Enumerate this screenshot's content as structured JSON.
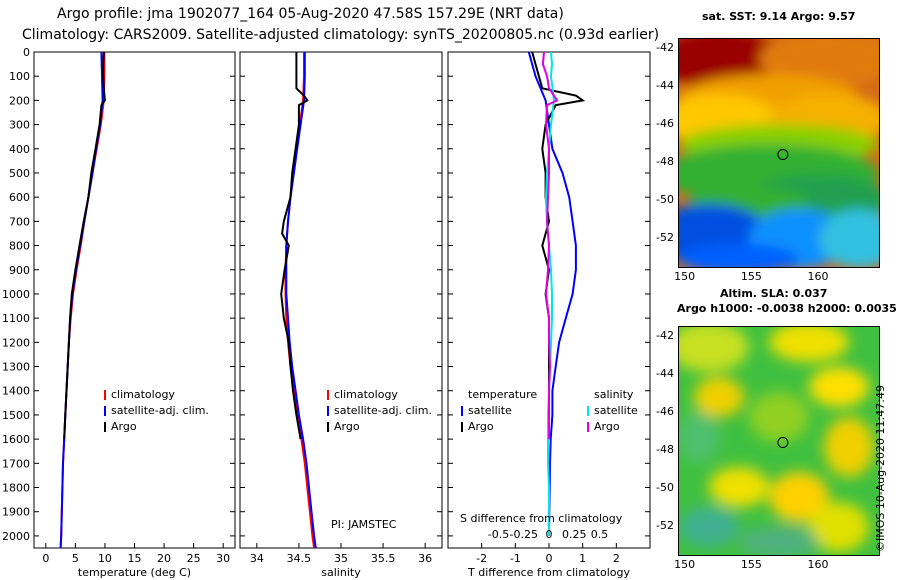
{
  "header": {
    "line1": "Argo profile: jma 1902077_164 05-Aug-2020 47.58S 157.29E (NRT data)",
    "line2": "Climatology: CARS2009. Satellite-adjusted climatology: synTS_20200805.nc (0.93d earlier)"
  },
  "colors": {
    "climatology": "#ff0000",
    "satellite": "#0000ff",
    "argo": "#000000",
    "t_satellite": "#0000ff",
    "s_satellite": "#00e5e5",
    "s_argo": "#e000e0"
  },
  "depth_ticks": [
    "0",
    "100",
    "200",
    "300",
    "400",
    "500",
    "600",
    "700",
    "800",
    "900",
    "1000",
    "1100",
    "1200",
    "1300",
    "1400",
    "1500",
    "1600",
    "1700",
    "1800",
    "1900",
    "2000"
  ],
  "chart_data": [
    {
      "type": "line",
      "xlabel": "temperature (deg C)",
      "xlim": [
        -2,
        32
      ],
      "xticks": [
        "0",
        "5",
        "10",
        "15",
        "20",
        "25",
        "30"
      ],
      "ylim": [
        2050,
        0
      ],
      "legend": [
        "climatology",
        "satellite-adj. clim.",
        "Argo"
      ],
      "series": [
        {
          "name": "climatology",
          "depth": [
            0,
            100,
            200,
            300,
            400,
            500,
            600,
            700,
            800,
            900,
            1000,
            1100,
            1200,
            1300,
            1400,
            1500,
            1600,
            1700,
            1800,
            1900,
            2000,
            2050
          ],
          "values": [
            9.9,
            9.9,
            9.8,
            9.3,
            8.6,
            7.9,
            7.2,
            6.5,
            5.9,
            5.2,
            4.6,
            4.2,
            3.9,
            3.7,
            3.5,
            3.3,
            3.1,
            2.9,
            2.8,
            2.7,
            2.6,
            2.5
          ]
        },
        {
          "name": "satellite-adj. clim.",
          "depth": [
            0,
            100,
            200,
            300,
            400,
            500,
            600,
            700,
            800,
            900,
            1000,
            1100,
            1200,
            1300,
            1400,
            1500,
            1600,
            1700,
            1800,
            1900,
            2000,
            2050
          ],
          "values": [
            9.4,
            9.5,
            9.6,
            9.2,
            8.5,
            7.9,
            7.2,
            6.5,
            5.8,
            5.1,
            4.5,
            4.1,
            3.9,
            3.7,
            3.5,
            3.3,
            3.1,
            2.9,
            2.8,
            2.7,
            2.6,
            2.5
          ]
        },
        {
          "name": "Argo",
          "depth": [
            0,
            50,
            100,
            150,
            200,
            220,
            300,
            400,
            500,
            600,
            700,
            800,
            900,
            1000,
            1100,
            1200,
            1300,
            1400,
            1500,
            1600
          ],
          "values": [
            9.8,
            9.7,
            9.7,
            9.8,
            10.0,
            9.4,
            9.1,
            8.4,
            7.7,
            7.2,
            6.4,
            5.7,
            5.0,
            4.4,
            4.1,
            3.9,
            3.7,
            3.5,
            3.3,
            3.1
          ]
        }
      ]
    },
    {
      "type": "line",
      "xlabel": "salinity",
      "xlim": [
        33.8,
        36.2
      ],
      "xticks": [
        "34",
        "34.5",
        "35",
        "35.5",
        "36"
      ],
      "ylim": [
        2050,
        0
      ],
      "legend": [
        "climatology",
        "satellite-adj. clim.",
        "Argo"
      ],
      "annotation": "PI: JAMSTEC",
      "series": [
        {
          "name": "climatology",
          "depth": [
            0,
            100,
            200,
            300,
            400,
            500,
            600,
            700,
            800,
            900,
            1000,
            1100,
            1200,
            1300,
            1400,
            1500,
            1600,
            1700,
            1800,
            1900,
            2000,
            2050
          ],
          "values": [
            34.56,
            34.56,
            34.55,
            34.51,
            34.47,
            34.43,
            34.4,
            34.37,
            34.35,
            34.34,
            34.34,
            34.35,
            34.37,
            34.4,
            34.44,
            34.48,
            34.53,
            34.57,
            34.6,
            34.63,
            34.66,
            34.68
          ]
        },
        {
          "name": "satellite-adj. clim.",
          "depth": [
            0,
            100,
            200,
            300,
            400,
            500,
            600,
            700,
            800,
            900,
            1000,
            1100,
            1200,
            1300,
            1400,
            1500,
            1600,
            1700,
            1800,
            1900,
            2000,
            2050
          ],
          "values": [
            34.57,
            34.57,
            34.56,
            34.52,
            34.48,
            34.44,
            34.4,
            34.37,
            34.35,
            34.35,
            34.35,
            34.37,
            34.39,
            34.42,
            34.46,
            34.5,
            34.55,
            34.59,
            34.62,
            34.65,
            34.68,
            34.7
          ]
        },
        {
          "name": "Argo",
          "depth": [
            0,
            50,
            100,
            150,
            180,
            200,
            220,
            300,
            400,
            500,
            600,
            700,
            750,
            800,
            900,
            1000,
            1100,
            1200,
            1300,
            1400,
            1500,
            1600
          ],
          "values": [
            34.47,
            34.47,
            34.47,
            34.47,
            34.56,
            34.6,
            34.5,
            34.5,
            34.46,
            34.42,
            34.4,
            34.32,
            34.3,
            34.38,
            34.33,
            34.29,
            34.32,
            34.38,
            34.4,
            34.43,
            34.47,
            34.52
          ]
        }
      ]
    },
    {
      "type": "line",
      "xlabel": "T difference from climatology",
      "xlim": [
        -3,
        3
      ],
      "xticks": [
        "-2",
        "-1",
        "0",
        "1",
        "2"
      ],
      "secondary_xlabel": "S difference from climatology",
      "secondary_xticks": [
        "-0.5",
        "-0.25",
        "0",
        "0.25",
        "0.5"
      ],
      "ylim": [
        2050,
        0
      ],
      "legend_heading_left": "temperature",
      "legend_heading_right": "salinity",
      "legend": [
        "satellite",
        "Argo",
        "satellite",
        "Argo"
      ],
      "series": [
        {
          "name": "T satellite",
          "depth": [
            0,
            100,
            200,
            300,
            400,
            500,
            600,
            700,
            800,
            900,
            1000,
            1100,
            1200,
            1300,
            1400,
            1500,
            1600,
            1700,
            1800,
            1900,
            2000
          ],
          "values": [
            -0.6,
            -0.4,
            -0.1,
            0.0,
            0.1,
            0.4,
            0.6,
            0.7,
            0.8,
            0.8,
            0.7,
            0.5,
            0.3,
            0.2,
            0.1,
            0.1,
            0.05,
            0.03,
            0.02,
            0.01,
            0.0
          ]
        },
        {
          "name": "T Argo",
          "depth": [
            0,
            50,
            100,
            150,
            180,
            200,
            220,
            300,
            400,
            500,
            600,
            700,
            800,
            900,
            1000,
            1100,
            1200,
            1300,
            1400,
            1500,
            1600
          ],
          "values": [
            -0.5,
            -0.4,
            -0.3,
            -0.2,
            0.8,
            1.0,
            0.2,
            -0.1,
            -0.2,
            -0.1,
            -0.1,
            0.0,
            -0.2,
            0.0,
            -0.1,
            0.0,
            0.0,
            0.0,
            0.0,
            0.0,
            0.0
          ]
        },
        {
          "name": "S satellite",
          "depth": [
            0,
            50,
            100,
            200,
            300,
            400,
            500,
            600,
            700,
            800,
            900,
            1000,
            1100,
            1200,
            1300,
            1400,
            1500,
            1600,
            1700,
            1800,
            1900,
            2000
          ],
          "values": [
            0.02,
            0.03,
            0.02,
            0.05,
            0.02,
            0.0,
            -0.02,
            -0.03,
            -0.02,
            0.0,
            0.02,
            0.03,
            0.03,
            0.02,
            0.01,
            0.0,
            -0.01,
            -0.01,
            -0.01,
            0.0,
            0.0,
            0.0
          ]
        },
        {
          "name": "S Argo",
          "depth": [
            0,
            50,
            100,
            150,
            200,
            220,
            300,
            400,
            500,
            600,
            700,
            800,
            900,
            1000,
            1100,
            1200,
            1300,
            1400,
            1500,
            1600
          ],
          "values": [
            -0.05,
            -0.06,
            -0.02,
            0.0,
            0.08,
            -0.02,
            -0.03,
            0.0,
            0.0,
            -0.01,
            -0.02,
            0.0,
            -0.01,
            -0.03,
            0.0,
            0.0,
            0.01,
            0.0,
            0.0,
            0.0
          ]
        }
      ]
    },
    {
      "type": "heatmap",
      "title": "sat. SST: 9.14 Argo: 9.57",
      "xticks": [
        "150",
        "155",
        "160"
      ],
      "yticks": [
        "-42",
        "-44",
        "-46",
        "-48",
        "-50",
        "-52"
      ],
      "marker": {
        "lon": 157.29,
        "lat": -47.58
      }
    },
    {
      "type": "heatmap",
      "title_line1": "Altim. SLA: 0.037",
      "title_line2": "Argo h1000: -0.0038 h2000: 0.0035",
      "xticks": [
        "150",
        "155",
        "160"
      ],
      "yticks": [
        "-42",
        "-44",
        "-46",
        "-48",
        "-50",
        "-52"
      ],
      "marker": {
        "lon": 157.29,
        "lat": -47.58
      }
    }
  ],
  "credit": "©IMOS 10-Aug-2020 11:47:49"
}
